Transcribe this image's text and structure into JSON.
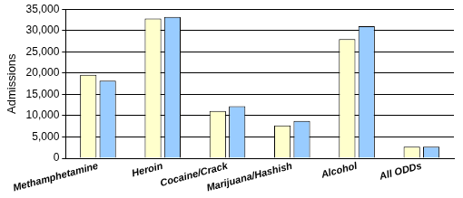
{
  "chart_data": {
    "type": "bar",
    "y_label": "Admissions",
    "categories": [
      "Methamphetamine",
      "Heroin",
      "Cocaine/Crack",
      "Marijuana/Hashish",
      "Alcohol",
      "All ODDs"
    ],
    "series": [
      {
        "color": "#ffffcc",
        "values": [
          19600,
          32800,
          11100,
          7700,
          28000,
          2700
        ]
      },
      {
        "color": "#99ccff",
        "values": [
          18200,
          33200,
          12200,
          8800,
          31000,
          2700
        ]
      }
    ],
    "ylim": [
      0,
      35000
    ],
    "yticks": [
      0,
      {
        "value": 5000,
        "label": "5,000"
      },
      {
        "value": 10000,
        "label": "10,000"
      },
      {
        "value": 15000,
        "label": "15,000"
      },
      {
        "value": 20000,
        "label": "20,000"
      },
      {
        "value": 25000,
        "label": "25,000"
      },
      {
        "value": 30000,
        "label": "30,000"
      },
      {
        "value": 35000,
        "label": "35,000"
      }
    ],
    "grid": true
  }
}
